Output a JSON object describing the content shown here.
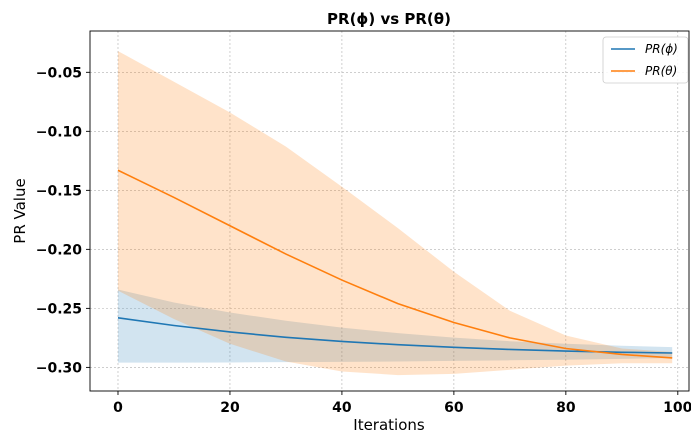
{
  "chart_data": {
    "type": "line",
    "title": "PR(ϕ) vs PR(θ)",
    "xlabel": "Iterations",
    "ylabel": "PR Value",
    "xlim": [
      -5,
      102
    ],
    "ylim": [
      -0.32,
      -0.015
    ],
    "xticks": [
      0,
      20,
      40,
      60,
      80,
      100
    ],
    "xtick_labels": [
      "0",
      "20",
      "40",
      "60",
      "80",
      "100"
    ],
    "yticks": [
      -0.3,
      -0.25,
      -0.2,
      -0.15,
      -0.1,
      -0.05
    ],
    "ytick_labels": [
      "−0.30",
      "−0.25",
      "−0.20",
      "−0.15",
      "−0.10",
      "−0.05"
    ],
    "grid": true,
    "legend_position": "top-right",
    "x": [
      0,
      10,
      20,
      30,
      40,
      50,
      60,
      70,
      80,
      90,
      99
    ],
    "series": [
      {
        "name": "PR(ϕ)",
        "color": "#1f77b4",
        "band_color": "#1f77b4",
        "band_opacity": 0.2,
        "values": [
          -0.258,
          -0.2645,
          -0.27,
          -0.2745,
          -0.278,
          -0.2808,
          -0.283,
          -0.2848,
          -0.2862,
          -0.2872,
          -0.2878
        ],
        "lower": [
          -0.296,
          -0.296,
          -0.2958,
          -0.2955,
          -0.2953,
          -0.295,
          -0.2945,
          -0.294,
          -0.2935,
          -0.2928,
          -0.292
        ],
        "upper": [
          -0.234,
          -0.245,
          -0.2535,
          -0.2605,
          -0.2663,
          -0.271,
          -0.2748,
          -0.2778,
          -0.28,
          -0.2817,
          -0.2828
        ]
      },
      {
        "name": "PR(θ)",
        "color": "#ff7f0e",
        "band_color": "#ff7f0e",
        "band_opacity": 0.22,
        "values": [
          -0.133,
          -0.156,
          -0.18,
          -0.204,
          -0.226,
          -0.246,
          -0.262,
          -0.275,
          -0.284,
          -0.289,
          -0.292
        ],
        "lower": [
          -0.235,
          -0.259,
          -0.28,
          -0.295,
          -0.3035,
          -0.3065,
          -0.3055,
          -0.302,
          -0.2985,
          -0.2965,
          -0.2965
        ],
        "upper": [
          -0.032,
          -0.058,
          -0.084,
          -0.113,
          -0.147,
          -0.182,
          -0.219,
          -0.252,
          -0.273,
          -0.284,
          -0.287
        ]
      }
    ]
  }
}
